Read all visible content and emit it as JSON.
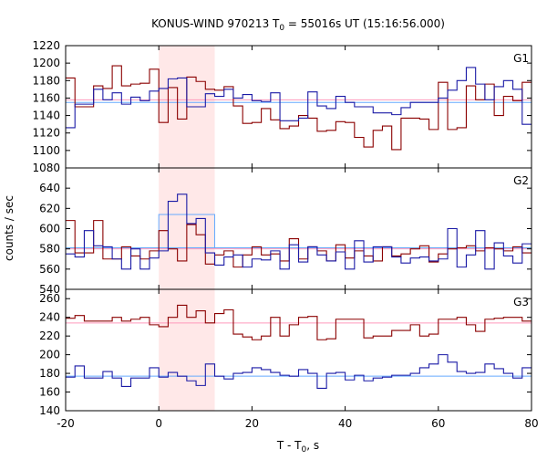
{
  "chart_data": {
    "type": "line",
    "title": "KONUS-WIND 970213 T",
    "title_sub": "0",
    "title_rest": " = 55016s UT (15:16:56.000)",
    "xlabel": "T - T",
    "xlabel_sub": "0",
    "xlabel_rest": ", s",
    "ylabel": "counts / sec",
    "xlim": [
      -20,
      80
    ],
    "x_ticks": [
      -20,
      0,
      20,
      40,
      60,
      80
    ],
    "highlight": {
      "x0": 0,
      "x1": 12,
      "color": "#ffe8e8"
    },
    "colors": {
      "red": "#8b0000",
      "blue": "#1a1aa6",
      "pink": "#ff99bb",
      "cyan": "#66aaff",
      "highlight": "#ffe8e8"
    },
    "panels": [
      {
        "label": "G1",
        "ylim": [
          1080,
          1220
        ],
        "y_ticks": [
          1080,
          1100,
          1120,
          1140,
          1160,
          1180,
          1200,
          1220
        ],
        "bin_start": -20,
        "bin_width": 2,
        "series": [
          {
            "color_key": "red",
            "values": [
              1183,
              1150,
              1150,
              1174,
              1171,
              1197,
              1174,
              1176,
              1177,
              1193,
              1132,
              1172,
              1136,
              1184,
              1179,
              1170,
              1169,
              1173,
              1151,
              1131,
              1132,
              1148,
              1135,
              1125,
              1128,
              1140,
              1137,
              1122,
              1123,
              1133,
              1132,
              1115,
              1104,
              1123,
              1128,
              1101,
              1137,
              1137,
              1136,
              1124,
              1178,
              1124,
              1126,
              1174,
              1158,
              1176,
              1140,
              1162,
              1157,
              1178
            ]
          },
          {
            "color_key": "blue",
            "values": [
              1126,
              1153,
              1153,
              1170,
              1158,
              1166,
              1153,
              1161,
              1157,
              1168,
              1171,
              1182,
              1183,
              1150,
              1150,
              1165,
              1162,
              1170,
              1160,
              1164,
              1157,
              1156,
              1166,
              1134,
              1134,
              1137,
              1167,
              1151,
              1148,
              1162,
              1155,
              1150,
              1150,
              1143,
              1143,
              1141,
              1149,
              1155,
              1155,
              1155,
              1160,
              1169,
              1180,
              1195,
              1176,
              1158,
              1173,
              1180,
              1170,
              1130
            ]
          }
        ],
        "fits": [
          {
            "color_key": "pink",
            "value": 1158
          },
          {
            "color_key": "cyan",
            "value": 1155
          }
        ]
      },
      {
        "label": "G2",
        "ylim": [
          540,
          660
        ],
        "y_ticks": [
          540,
          560,
          580,
          600,
          620,
          640
        ],
        "bin_start": -20,
        "bin_width": 2,
        "series": [
          {
            "color_key": "red",
            "values": [
              608,
              576,
              576,
              608,
              570,
              570,
              582,
              573,
              570,
              578,
              598,
              580,
              568,
              604,
              594,
              565,
              574,
              578,
              562,
              574,
              582,
              574,
              575,
              568,
              590,
              570,
              582,
              578,
              568,
              584,
              571,
              578,
              573,
              568,
              582,
              573,
              575,
              580,
              583,
              567,
              575,
              580,
              581,
              583,
              578,
              581,
              580,
              578,
              582,
              576
            ]
          },
          {
            "color_key": "blue",
            "values": [
              575,
              572,
              598,
              583,
              582,
              570,
              560,
              580,
              560,
              571,
              578,
              627,
              634,
              605,
              610,
              576,
              564,
              572,
              574,
              562,
              570,
              569,
              578,
              560,
              584,
              567,
              582,
              574,
              568,
              577,
              560,
              588,
              567,
              582,
              582,
              572,
              566,
              571,
              572,
              568,
              570,
              600,
              562,
              574,
              598,
              560,
              586,
              573,
              566,
              585
            ]
          }
        ],
        "fits": [
          {
            "color_key": "pink",
            "value": 580
          },
          {
            "color_key": "cyan",
            "value": 581
          }
        ],
        "steps": [
          {
            "color_key": "cyan",
            "x0": 0,
            "x1": 12,
            "value": 614
          }
        ]
      },
      {
        "label": "G3",
        "ylim": [
          140,
          270
        ],
        "y_ticks": [
          140,
          160,
          180,
          200,
          220,
          240,
          260
        ],
        "bin_start": -20,
        "bin_width": 2,
        "series": [
          {
            "color_key": "red",
            "values": [
              239,
              242,
              236,
              236,
              236,
              240,
              236,
              238,
              240,
              232,
              230,
              240,
              253,
              240,
              247,
              234,
              244,
              248,
              222,
              219,
              216,
              220,
              240,
              220,
              232,
              240,
              241,
              216,
              217,
              238,
              238,
              238,
              218,
              220,
              220,
              226,
              226,
              232,
              220,
              222,
              238,
              238,
              240,
              232,
              225,
              238,
              239,
              240,
              240,
              236
            ]
          },
          {
            "color_key": "blue",
            "values": [
              176,
              188,
              175,
              175,
              182,
              175,
              166,
              175,
              175,
              186,
              176,
              181,
              177,
              172,
              167,
              190,
              177,
              174,
              180,
              181,
              186,
              184,
              181,
              178,
              177,
              184,
              180,
              164,
              180,
              181,
              173,
              178,
              172,
              175,
              176,
              178,
              178,
              180,
              186,
              190,
              200,
              192,
              182,
              180,
              181,
              190,
              185,
              180,
              175,
              186
            ]
          }
        ],
        "fits": [
          {
            "color_key": "pink",
            "value": 234
          },
          {
            "color_key": "cyan",
            "value": 177
          }
        ]
      }
    ]
  }
}
